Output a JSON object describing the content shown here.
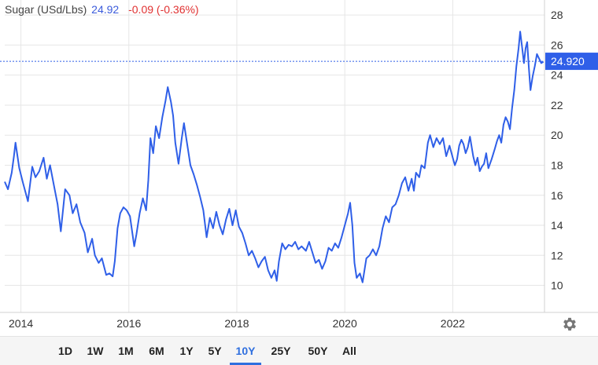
{
  "legend": {
    "name": "Sugar (USd/Lbs)",
    "price": "24.92",
    "change": "-0.09 (-0.36%)"
  },
  "price_tag": "24.920",
  "colors": {
    "line": "#2f5fe8",
    "accent": "#2f6fdf",
    "negative": "#e03131",
    "grid": "#e6e6e6"
  },
  "range_buttons": [
    {
      "label": "1D"
    },
    {
      "label": "1W"
    },
    {
      "label": "1M"
    },
    {
      "label": "6M"
    },
    {
      "label": "1Y"
    },
    {
      "label": "5Y"
    },
    {
      "label": "10Y",
      "active": true
    },
    {
      "label": "25Y"
    },
    {
      "label": "50Y"
    },
    {
      "label": "All"
    }
  ],
  "settings_icon": "gear-icon",
  "chart_data": {
    "type": "line",
    "title": "",
    "xlabel": "",
    "ylabel": "",
    "xlim": [
      2013.7,
      2023.7
    ],
    "ylim": [
      8.2,
      29.0
    ],
    "y_ticks": [
      "10",
      "12",
      "14",
      "16",
      "18",
      "20",
      "22",
      "24",
      "26",
      "28"
    ],
    "x_ticks": [
      "2014",
      "2016",
      "2018",
      "2020",
      "2022"
    ],
    "grid": true,
    "last_value": 24.92,
    "series": [
      {
        "points": [
          [
            2013.7,
            16.9
          ],
          [
            2013.76,
            16.4
          ],
          [
            2013.83,
            17.5
          ],
          [
            2013.87,
            18.6
          ],
          [
            2013.9,
            19.5
          ],
          [
            2013.97,
            17.8
          ],
          [
            2014.04,
            16.8
          ],
          [
            2014.13,
            15.6
          ],
          [
            2014.21,
            17.9
          ],
          [
            2014.27,
            17.2
          ],
          [
            2014.34,
            17.6
          ],
          [
            2014.42,
            18.5
          ],
          [
            2014.48,
            17.1
          ],
          [
            2014.54,
            18.0
          ],
          [
            2014.62,
            16.5
          ],
          [
            2014.68,
            15.4
          ],
          [
            2014.74,
            13.6
          ],
          [
            2014.82,
            16.4
          ],
          [
            2014.9,
            16.0
          ],
          [
            2014.96,
            14.8
          ],
          [
            2015.03,
            15.4
          ],
          [
            2015.1,
            14.2
          ],
          [
            2015.18,
            13.5
          ],
          [
            2015.24,
            12.2
          ],
          [
            2015.32,
            13.1
          ],
          [
            2015.37,
            12.0
          ],
          [
            2015.44,
            11.5
          ],
          [
            2015.5,
            11.8
          ],
          [
            2015.58,
            10.7
          ],
          [
            2015.64,
            10.8
          ],
          [
            2015.7,
            10.6
          ],
          [
            2015.74,
            11.6
          ],
          [
            2015.79,
            13.8
          ],
          [
            2015.84,
            14.8
          ],
          [
            2015.9,
            15.2
          ],
          [
            2015.96,
            15.0
          ],
          [
            2016.02,
            14.6
          ],
          [
            2016.06,
            13.6
          ],
          [
            2016.1,
            12.6
          ],
          [
            2016.14,
            13.4
          ],
          [
            2016.2,
            14.8
          ],
          [
            2016.26,
            15.8
          ],
          [
            2016.32,
            15.0
          ],
          [
            2016.36,
            17.0
          ],
          [
            2016.4,
            19.8
          ],
          [
            2016.45,
            18.8
          ],
          [
            2016.5,
            20.6
          ],
          [
            2016.56,
            19.8
          ],
          [
            2016.62,
            21.2
          ],
          [
            2016.68,
            22.3
          ],
          [
            2016.72,
            23.2
          ],
          [
            2016.78,
            22.2
          ],
          [
            2016.82,
            21.3
          ],
          [
            2016.86,
            19.5
          ],
          [
            2016.92,
            18.1
          ],
          [
            2016.98,
            19.8
          ],
          [
            2017.02,
            20.8
          ],
          [
            2017.08,
            19.4
          ],
          [
            2017.14,
            18.0
          ],
          [
            2017.2,
            17.4
          ],
          [
            2017.26,
            16.7
          ],
          [
            2017.32,
            15.9
          ],
          [
            2017.38,
            15.0
          ],
          [
            2017.44,
            13.2
          ],
          [
            2017.5,
            14.5
          ],
          [
            2017.56,
            13.8
          ],
          [
            2017.62,
            14.9
          ],
          [
            2017.68,
            14.0
          ],
          [
            2017.74,
            13.4
          ],
          [
            2017.8,
            14.4
          ],
          [
            2017.86,
            15.1
          ],
          [
            2017.92,
            14.0
          ],
          [
            2017.98,
            15.0
          ],
          [
            2018.04,
            13.9
          ],
          [
            2018.1,
            13.5
          ],
          [
            2018.16,
            12.8
          ],
          [
            2018.22,
            12.0
          ],
          [
            2018.28,
            12.3
          ],
          [
            2018.34,
            11.8
          ],
          [
            2018.4,
            11.2
          ],
          [
            2018.46,
            11.6
          ],
          [
            2018.52,
            11.9
          ],
          [
            2018.58,
            11.0
          ],
          [
            2018.64,
            10.5
          ],
          [
            2018.7,
            11.0
          ],
          [
            2018.74,
            10.3
          ],
          [
            2018.78,
            11.6
          ],
          [
            2018.84,
            12.8
          ],
          [
            2018.9,
            12.4
          ],
          [
            2018.96,
            12.7
          ],
          [
            2019.02,
            12.6
          ],
          [
            2019.08,
            12.9
          ],
          [
            2019.14,
            12.4
          ],
          [
            2019.2,
            12.6
          ],
          [
            2019.28,
            12.3
          ],
          [
            2019.34,
            12.9
          ],
          [
            2019.4,
            12.2
          ],
          [
            2019.46,
            11.5
          ],
          [
            2019.52,
            11.7
          ],
          [
            2019.58,
            11.1
          ],
          [
            2019.64,
            11.6
          ],
          [
            2019.7,
            12.5
          ],
          [
            2019.76,
            12.3
          ],
          [
            2019.82,
            12.8
          ],
          [
            2019.88,
            12.5
          ],
          [
            2019.94,
            13.2
          ],
          [
            2020.0,
            14.0
          ],
          [
            2020.06,
            14.8
          ],
          [
            2020.1,
            15.5
          ],
          [
            2020.14,
            14.0
          ],
          [
            2020.18,
            11.5
          ],
          [
            2020.22,
            10.5
          ],
          [
            2020.28,
            10.8
          ],
          [
            2020.33,
            10.2
          ],
          [
            2020.4,
            11.8
          ],
          [
            2020.46,
            12.0
          ],
          [
            2020.52,
            12.4
          ],
          [
            2020.58,
            12.0
          ],
          [
            2020.64,
            12.6
          ],
          [
            2020.7,
            13.8
          ],
          [
            2020.76,
            14.6
          ],
          [
            2020.82,
            14.2
          ],
          [
            2020.88,
            15.2
          ],
          [
            2020.94,
            15.4
          ],
          [
            2021.0,
            16.0
          ],
          [
            2021.06,
            16.8
          ],
          [
            2021.12,
            17.2
          ],
          [
            2021.18,
            16.3
          ],
          [
            2021.24,
            17.1
          ],
          [
            2021.28,
            16.3
          ],
          [
            2021.32,
            17.5
          ],
          [
            2021.38,
            17.2
          ],
          [
            2021.42,
            18.0
          ],
          [
            2021.48,
            17.8
          ],
          [
            2021.54,
            19.5
          ],
          [
            2021.58,
            20.0
          ],
          [
            2021.64,
            19.2
          ],
          [
            2021.7,
            19.8
          ],
          [
            2021.76,
            19.4
          ],
          [
            2021.82,
            19.8
          ],
          [
            2021.88,
            18.6
          ],
          [
            2021.94,
            19.3
          ],
          [
            2022.0,
            18.5
          ],
          [
            2022.04,
            18.0
          ],
          [
            2022.08,
            18.4
          ],
          [
            2022.12,
            19.3
          ],
          [
            2022.16,
            19.7
          ],
          [
            2022.2,
            19.4
          ],
          [
            2022.24,
            18.8
          ],
          [
            2022.28,
            19.2
          ],
          [
            2022.32,
            19.9
          ],
          [
            2022.38,
            18.6
          ],
          [
            2022.42,
            18.0
          ],
          [
            2022.46,
            18.5
          ],
          [
            2022.5,
            17.6
          ],
          [
            2022.54,
            17.9
          ],
          [
            2022.58,
            18.1
          ],
          [
            2022.62,
            18.8
          ],
          [
            2022.66,
            17.8
          ],
          [
            2022.72,
            18.4
          ],
          [
            2022.78,
            19.1
          ],
          [
            2022.82,
            19.6
          ],
          [
            2022.86,
            20.0
          ],
          [
            2022.9,
            19.5
          ],
          [
            2022.94,
            20.7
          ],
          [
            2022.98,
            21.2
          ],
          [
            2023.02,
            20.9
          ],
          [
            2023.06,
            20.4
          ],
          [
            2023.1,
            21.8
          ],
          [
            2023.14,
            23.0
          ],
          [
            2023.18,
            24.6
          ],
          [
            2023.22,
            25.8
          ],
          [
            2023.25,
            26.9
          ],
          [
            2023.28,
            26.0
          ],
          [
            2023.32,
            24.8
          ],
          [
            2023.35,
            25.8
          ],
          [
            2023.38,
            26.2
          ],
          [
            2023.41,
            24.5
          ],
          [
            2023.44,
            23.0
          ],
          [
            2023.48,
            23.9
          ],
          [
            2023.52,
            24.6
          ],
          [
            2023.56,
            25.4
          ],
          [
            2023.6,
            25.1
          ],
          [
            2023.64,
            24.8
          ],
          [
            2023.68,
            24.9
          ]
        ]
      }
    ]
  }
}
